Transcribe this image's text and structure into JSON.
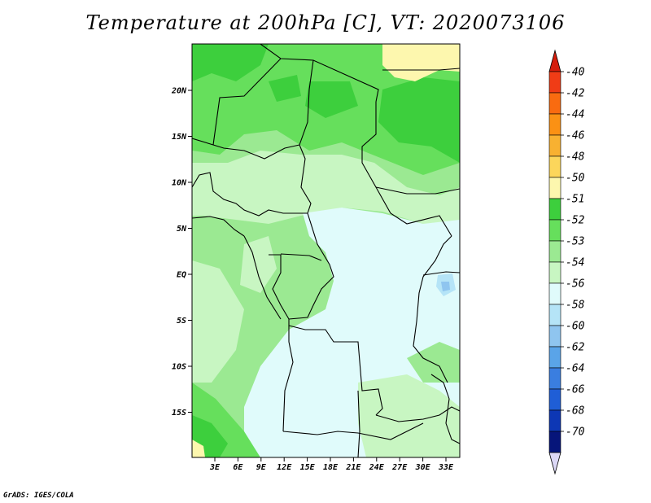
{
  "title": "Temperature at 200hPa [C], VT: 2020073106",
  "credit": "GrADS: IGES/COLA",
  "x_ticks": [
    "3E",
    "6E",
    "9E",
    "12E",
    "15E",
    "18E",
    "21E",
    "24E",
    "27E",
    "30E",
    "33E"
  ],
  "y_ticks": [
    "20N",
    "15N",
    "10N",
    "5N",
    "EQ",
    "5S",
    "10S",
    "15S"
  ],
  "colorbar": {
    "labels": [
      "-40",
      "-42",
      "-44",
      "-46",
      "-48",
      "-50",
      "-51",
      "-52",
      "-53",
      "-54",
      "-56",
      "-58",
      "-60",
      "-62",
      "-64",
      "-66",
      "-68",
      "-70"
    ],
    "colors": [
      "#f03c16",
      "#f96b10",
      "#fb9114",
      "#f8b131",
      "#fcd65b",
      "#fdf7ae",
      "#3dcf3d",
      "#66df5c",
      "#9be992",
      "#c8f6c2",
      "#e0fbfb",
      "#b5e4f7",
      "#8fc5ef",
      "#5aa4e8",
      "#3a7ee0",
      "#1f5ed6",
      "#0d37b5",
      "#06157a"
    ],
    "top_arrow_color": "#d51d0c",
    "bottom_arrow_color": "#dcd8f6"
  }
}
